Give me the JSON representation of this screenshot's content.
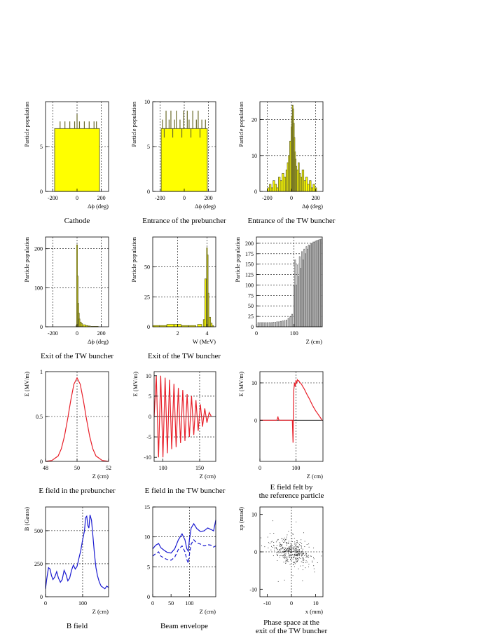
{
  "colors": {
    "histogram_fill": "#ffff00",
    "histogram_edge": "#6b6b2a",
    "field_line": "#e8202a",
    "bfield_line": "#1a1ad0",
    "gray_bars": "#777777",
    "frame": "#000000",
    "grid": "#000000"
  },
  "chart_data": [
    {
      "id": "cathode",
      "type": "bar",
      "caption": "Cathode",
      "xlabel": "Δϕ (deg)",
      "ylabel": "Particle population",
      "xlim": [
        -260,
        260
      ],
      "ylim": [
        0,
        10
      ],
      "xticks": [
        -200,
        0,
        200
      ],
      "yticks": [
        0,
        5
      ],
      "xtick_labels": [
        "-200",
        "0",
        "200"
      ],
      "ytick_labels": [
        "0",
        "5"
      ],
      "xgrid": [
        -200,
        0,
        200
      ],
      "ygrid": [
        5
      ],
      "fill": {
        "x0": -185,
        "x1": 185,
        "level": 7
      },
      "spikes": [
        [
          -140,
          7.8
        ],
        [
          -100,
          7.8
        ],
        [
          -60,
          7.8
        ],
        [
          -20,
          7.8
        ],
        [
          0,
          8.6
        ],
        [
          20,
          7.8
        ],
        [
          60,
          7.8
        ],
        [
          100,
          7.8
        ],
        [
          140,
          7.8
        ],
        [
          160,
          7.8
        ]
      ]
    },
    {
      "id": "prebuncher",
      "type": "bar",
      "caption": "Entrance of the prebuncher",
      "xlabel": "Δϕ (deg)",
      "ylabel": "Particle population",
      "xlim": [
        -260,
        260
      ],
      "ylim": [
        0,
        10
      ],
      "xticks": [
        -200,
        0,
        200
      ],
      "yticks": [
        0,
        5,
        10
      ],
      "xtick_labels": [
        "-200",
        "0",
        "200"
      ],
      "ytick_labels": [
        "0",
        "5",
        "10"
      ],
      "xgrid": [
        -200,
        0,
        200
      ],
      "ygrid": [
        5
      ],
      "fill": {
        "x0": -190,
        "x1": 190,
        "level": 7
      },
      "spikes": [
        [
          -180,
          8
        ],
        [
          -165,
          6
        ],
        [
          -150,
          9
        ],
        [
          -140,
          7
        ],
        [
          -125,
          8
        ],
        [
          -110,
          9
        ],
        [
          -95,
          6
        ],
        [
          -80,
          8
        ],
        [
          -65,
          9
        ],
        [
          -50,
          7
        ],
        [
          -35,
          8
        ],
        [
          -20,
          6
        ],
        [
          -5,
          9
        ],
        [
          10,
          7
        ],
        [
          25,
          9
        ],
        [
          40,
          8
        ],
        [
          55,
          6
        ],
        [
          70,
          9
        ],
        [
          85,
          7
        ],
        [
          100,
          8
        ],
        [
          115,
          9
        ],
        [
          130,
          6
        ],
        [
          145,
          8
        ],
        [
          160,
          7
        ],
        [
          175,
          8
        ]
      ]
    },
    {
      "id": "tw_entrance",
      "type": "bar",
      "caption": "Entrance of the TW buncher",
      "xlabel": "Δϕ (deg)",
      "ylabel": "Particle population",
      "xlim": [
        -260,
        260
      ],
      "ylim": [
        0,
        25
      ],
      "xticks": [
        -200,
        0,
        200
      ],
      "yticks": [
        0,
        10,
        20
      ],
      "xtick_labels": [
        "-200",
        "0",
        "200"
      ],
      "ytick_labels": [
        "0",
        "10",
        "20"
      ],
      "xgrid": [
        -200,
        0,
        200
      ],
      "ygrid": [
        10,
        20
      ],
      "x": [
        -190,
        -175,
        -160,
        -145,
        -130,
        -115,
        -100,
        -85,
        -70,
        -55,
        -40,
        -30,
        -20,
        -10,
        0,
        5,
        10,
        15,
        20,
        25,
        30,
        35,
        40,
        50,
        60,
        70,
        80,
        95,
        110,
        125,
        140,
        155,
        170,
        185,
        200
      ],
      "values": [
        1,
        2,
        1,
        3,
        2,
        1,
        4,
        3,
        5,
        4,
        6,
        8,
        10,
        14,
        18,
        21,
        24,
        23,
        19,
        15,
        11,
        9,
        7,
        6,
        8,
        5,
        4,
        6,
        3,
        4,
        2,
        3,
        1,
        2,
        1
      ]
    },
    {
      "id": "tw_exit",
      "type": "bar",
      "caption": "Exit of the TW buncher",
      "xlabel": "Δϕ (deg)",
      "ylabel": "Particle population",
      "xlim": [
        -260,
        260
      ],
      "ylim": [
        0,
        230
      ],
      "xticks": [
        -200,
        0,
        200
      ],
      "yticks": [
        0,
        100,
        200
      ],
      "xtick_labels": [
        "-200",
        "0",
        "200"
      ],
      "ytick_labels": [
        "0",
        "100",
        "200"
      ],
      "xgrid": [
        -200,
        0,
        200
      ],
      "ygrid": [
        100,
        200
      ],
      "x": [
        -5,
        0,
        5,
        10,
        15,
        20,
        30,
        40,
        60,
        80,
        100,
        130,
        160
      ],
      "values": [
        3,
        210,
        130,
        60,
        35,
        20,
        12,
        8,
        5,
        3,
        2,
        1,
        1
      ]
    },
    {
      "id": "energy",
      "type": "bar",
      "caption": "Exit of the TW buncher",
      "xlabel": "W (MeV)",
      "ylabel": "Particle population",
      "xlim": [
        0.3,
        4.6
      ],
      "ylim": [
        0,
        75
      ],
      "xticks": [
        2,
        4
      ],
      "yticks": [
        0,
        25,
        50
      ],
      "xtick_labels": [
        "2",
        "4"
      ],
      "ytick_labels": [
        "0",
        "25",
        "50"
      ],
      "xgrid": [
        2,
        4
      ],
      "ygrid": [
        25,
        50
      ],
      "x": [
        0.5,
        1.0,
        1.5,
        2.0,
        2.5,
        3.0,
        3.5,
        3.8,
        3.9,
        4.0,
        4.05,
        4.1,
        4.2,
        4.3,
        4.4
      ],
      "values": [
        1,
        1,
        2,
        2,
        1,
        1,
        2,
        6,
        40,
        66,
        60,
        28,
        8,
        3,
        1
      ]
    },
    {
      "id": "z_population",
      "type": "bar",
      "caption": "",
      "xlabel": "Z (cm)",
      "ylabel": "Particle population",
      "xlim": [
        0,
        175
      ],
      "ylim": [
        0,
        215
      ],
      "xticks": [
        0,
        100
      ],
      "yticks": [
        0,
        25,
        50,
        75,
        100,
        125,
        150,
        175,
        200
      ],
      "xtick_labels": [
        "0",
        "100"
      ],
      "ytick_labels": [
        "0",
        "25",
        "50",
        "75",
        "100",
        "125",
        "150",
        "175",
        "200"
      ],
      "xgrid": [
        100
      ],
      "ygrid": [
        25,
        50,
        75,
        100,
        125,
        150,
        175,
        200
      ],
      "x": [
        5,
        10,
        15,
        20,
        25,
        30,
        35,
        40,
        45,
        50,
        55,
        60,
        65,
        70,
        75,
        80,
        85,
        90,
        95,
        100,
        103,
        106,
        109,
        112,
        115,
        118,
        121,
        124,
        127,
        130,
        133,
        136,
        139,
        142,
        145,
        148,
        151,
        154,
        157,
        160,
        163,
        166,
        169,
        172
      ],
      "values": [
        10,
        10,
        10,
        10,
        10,
        10,
        10,
        10,
        11,
        11,
        12,
        12,
        13,
        14,
        15,
        16,
        20,
        24,
        30,
        98,
        160,
        100,
        148,
        120,
        168,
        140,
        180,
        160,
        186,
        175,
        192,
        186,
        196,
        194,
        200,
        199,
        203,
        203,
        205,
        206,
        207,
        208,
        209,
        210
      ]
    },
    {
      "id": "e_prebuncher",
      "type": "line",
      "caption": "E field in the prebuncher",
      "xlabel": "Z (cm)",
      "ylabel": "E (MV/m)",
      "xlim": [
        48,
        52
      ],
      "ylim": [
        0,
        1
      ],
      "xticks": [
        48,
        50,
        52
      ],
      "yticks": [
        0,
        0.5,
        1
      ],
      "xtick_labels": [
        "48",
        "50",
        "52"
      ],
      "ytick_labels": [
        "0",
        "0.5",
        "1"
      ],
      "xgrid": [
        50
      ],
      "ygrid": [
        0.5
      ],
      "series": [
        {
          "x": [
            48.0,
            48.4,
            48.8,
            49.0,
            49.2,
            49.4,
            49.6,
            49.8,
            50.0,
            50.2,
            50.4,
            50.6,
            50.8,
            51.0,
            51.2,
            51.6,
            52.0
          ],
          "y": [
            0.0,
            0.01,
            0.06,
            0.14,
            0.28,
            0.47,
            0.68,
            0.86,
            0.93,
            0.86,
            0.68,
            0.47,
            0.28,
            0.14,
            0.06,
            0.01,
            0.0
          ]
        }
      ]
    },
    {
      "id": "e_tw",
      "type": "line",
      "caption": "E field in the TW buncher",
      "xlabel": "Z (cm)",
      "ylabel": "E (MV/m)",
      "xlim": [
        88,
        172
      ],
      "ylim": [
        -11,
        11
      ],
      "xticks": [
        100,
        150
      ],
      "yticks": [
        -10,
        -5,
        0,
        5,
        10
      ],
      "xtick_labels": [
        "100",
        "150"
      ],
      "ytick_labels": [
        "-10",
        "-5",
        "0",
        "5",
        "10"
      ],
      "xgrid": [
        150
      ],
      "ygrid": [
        -5,
        5
      ],
      "zero_line": true,
      "series": [
        {
          "x": [
            88,
            91,
            94,
            97,
            100,
            103,
            106,
            109,
            112,
            115,
            118,
            121,
            124,
            127,
            130,
            133,
            136,
            139,
            142,
            145,
            148,
            151,
            154,
            157,
            160,
            163,
            166
          ],
          "y": [
            0,
            10,
            -10,
            10,
            -10,
            9.5,
            -9,
            9,
            -8,
            8,
            -7.5,
            7,
            -6.5,
            6.5,
            -6,
            5.5,
            -5,
            5,
            -4.5,
            4,
            -3.5,
            3,
            -2.5,
            2,
            -1.5,
            1,
            0
          ]
        }
      ]
    },
    {
      "id": "e_ref",
      "type": "line",
      "caption": "E field felt by\nthe reference particle",
      "xlabel": "Z (cm)",
      "ylabel": "E (MV/m)",
      "xlim": [
        0,
        175
      ],
      "ylim": [
        -11,
        13
      ],
      "xticks": [
        0,
        100
      ],
      "yticks": [
        0,
        10
      ],
      "xtick_labels": [
        "0",
        "100"
      ],
      "ytick_labels": [
        "0",
        "10"
      ],
      "xgrid": [
        100
      ],
      "ygrid": [
        10
      ],
      "zero_line": true,
      "series": [
        {
          "x": [
            0,
            47,
            49,
            50,
            51,
            53,
            90,
            92,
            93,
            94,
            96,
            98,
            100,
            102,
            104,
            106,
            108,
            110,
            112,
            115,
            118,
            121,
            124,
            127,
            130,
            134,
            138,
            142,
            146,
            150,
            155,
            160,
            165,
            170,
            172
          ],
          "y": [
            0,
            0,
            0.5,
            1,
            0.5,
            0,
            0,
            -6,
            3,
            8,
            10,
            9,
            10.5,
            10,
            10.8,
            10.5,
            10.6,
            10.2,
            10,
            9.7,
            9.2,
            8.7,
            8.2,
            7.6,
            7,
            6.3,
            5.6,
            4.8,
            4,
            3.3,
            2.5,
            1.8,
            1.1,
            0.4,
            0
          ]
        }
      ]
    },
    {
      "id": "b_field",
      "type": "line",
      "caption": "B field",
      "xlabel": "Z (cm)",
      "ylabel": "B (Gauss)",
      "xlim": [
        0,
        170
      ],
      "ylim": [
        0,
        680
      ],
      "xticks": [
        0,
        100
      ],
      "yticks": [
        0,
        250,
        500
      ],
      "xtick_labels": [
        "0",
        "100"
      ],
      "ytick_labels": [
        "0",
        "250",
        "500"
      ],
      "xgrid": [
        100
      ],
      "ygrid": [
        250,
        500
      ],
      "series": [
        {
          "x": [
            0,
            3,
            8,
            12,
            16,
            20,
            25,
            30,
            35,
            40,
            45,
            50,
            55,
            60,
            65,
            70,
            75,
            80,
            85,
            90,
            95,
            100,
            105,
            108,
            111,
            114,
            117,
            120,
            124,
            128,
            132,
            136,
            140,
            145,
            150,
            155,
            160,
            165,
            170
          ],
          "y": [
            60,
            130,
            220,
            210,
            160,
            130,
            150,
            190,
            140,
            110,
            130,
            200,
            170,
            120,
            140,
            200,
            240,
            210,
            230,
            290,
            350,
            430,
            500,
            600,
            610,
            540,
            520,
            620,
            580,
            450,
            320,
            220,
            160,
            110,
            80,
            70,
            60,
            80,
            70
          ]
        }
      ]
    },
    {
      "id": "beam_envelope",
      "type": "line",
      "caption": "Beam envelope",
      "xlabel": "Z (cm)",
      "ylabel": "",
      "xlim": [
        0,
        172
      ],
      "ylim": [
        0,
        15
      ],
      "xticks": [
        0,
        50,
        100
      ],
      "yticks": [
        0,
        5,
        10,
        15
      ],
      "xtick_labels": [
        "0",
        "50",
        "100"
      ],
      "ytick_labels": [
        "0",
        "5",
        "10",
        "15"
      ],
      "xgrid": [
        100
      ],
      "ygrid": [
        5,
        10
      ],
      "series": [
        {
          "style": "solid",
          "x": [
            0,
            8,
            16,
            22,
            30,
            40,
            50,
            60,
            70,
            80,
            88,
            93,
            97,
            100,
            105,
            112,
            120,
            130,
            140,
            150,
            160,
            166,
            172
          ],
          "y": [
            8.0,
            8.6,
            8.9,
            8.2,
            7.8,
            7.4,
            7.3,
            8.0,
            9.5,
            10.5,
            9.5,
            8.0,
            7.6,
            9.5,
            11.5,
            12.2,
            11.4,
            10.9,
            11.0,
            11.5,
            11.2,
            11.0,
            12.8
          ]
        },
        {
          "style": "dashed",
          "x": [
            0,
            8,
            16,
            22,
            30,
            40,
            50,
            60,
            70,
            80,
            88,
            93,
            97,
            100,
            105,
            112,
            120,
            130,
            140,
            150,
            160,
            166,
            172
          ],
          "y": [
            6.8,
            7.2,
            7.5,
            6.8,
            6.5,
            6.2,
            6.1,
            6.6,
            7.9,
            8.5,
            7.5,
            6.2,
            5.6,
            7.0,
            8.8,
            9.5,
            9.0,
            8.8,
            8.5,
            8.7,
            8.6,
            8.3,
            8.5
          ]
        }
      ]
    },
    {
      "id": "phase_space",
      "type": "scatter",
      "caption": "Phase space at the\nexit of the TW buncher",
      "xlabel": "x (mm)",
      "ylabel": "xp (mrad)",
      "xlim": [
        -13,
        13
      ],
      "ylim": [
        -12,
        12
      ],
      "xticks": [
        -10,
        0,
        10
      ],
      "yticks": [
        -10,
        0,
        10
      ],
      "xtick_labels": [
        "-10",
        "0",
        "10"
      ],
      "ytick_labels": [
        "-10",
        "0",
        "10"
      ],
      "xgrid": [
        0
      ],
      "ygrid": [
        0
      ],
      "point_count": 420,
      "correlation_slope": -0.55,
      "spread_x": 4.0,
      "spread_y": 1.6
    }
  ]
}
